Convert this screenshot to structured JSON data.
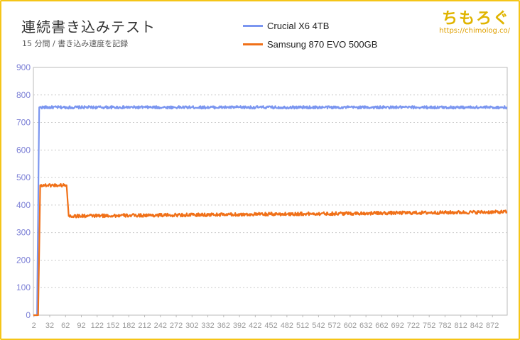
{
  "header": {
    "title": "連続書き込みテスト",
    "subtitle": "15 分間 / 書き込み速度を記録"
  },
  "brand": {
    "name": "ちもろぐ",
    "url": "https://chimolog.co/"
  },
  "chart_data": {
    "type": "line",
    "title": "連続書き込みテスト",
    "subtitle": "15 分間 / 書き込み速度を記録",
    "xlabel": "",
    "ylabel": "",
    "ylim": [
      0,
      900
    ],
    "xlim": [
      1,
      900
    ],
    "yticks": [
      "0",
      "100",
      "200",
      "300",
      "400",
      "500",
      "600",
      "700",
      "800",
      "900"
    ],
    "xticks": [
      "2",
      "32",
      "62",
      "92",
      "122",
      "152",
      "182",
      "212",
      "242",
      "272",
      "302",
      "332",
      "362",
      "392",
      "422",
      "452",
      "482",
      "512",
      "542",
      "572",
      "602",
      "632",
      "662",
      "692",
      "722",
      "752",
      "782",
      "812",
      "842",
      "872"
    ],
    "grid": true,
    "legend_position": "top",
    "series": [
      {
        "name": "Crucial X6 4TB",
        "color": "#7b96f0",
        "points": [
          [
            1,
            0
          ],
          [
            8,
            0
          ],
          [
            12,
            755
          ],
          [
            900,
            755
          ]
        ],
        "jitter": 5
      },
      {
        "name": "Samsung 870 EVO 500GB",
        "color": "#f07018",
        "points": [
          [
            1,
            0
          ],
          [
            10,
            0
          ],
          [
            14,
            472
          ],
          [
            64,
            472
          ],
          [
            68,
            360
          ],
          [
            900,
            375
          ]
        ],
        "jitter": 6
      }
    ]
  }
}
